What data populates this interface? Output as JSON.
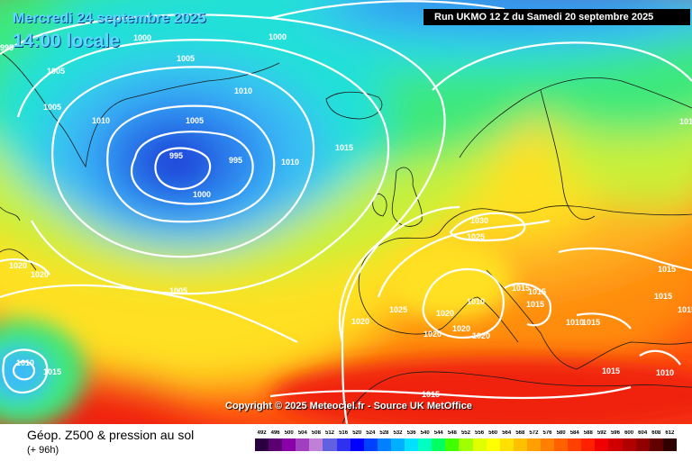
{
  "header": {
    "date_text": "Mercredi 24 septembre 2025",
    "time_text": "14:00 locale",
    "run_text": "Run UKMO 12 Z du Samedi 20 septembre 2025"
  },
  "copyright": "Copyright © 2025 Meteociel.fr - Source UK MetOffice",
  "legend": {
    "title": "Géop. Z500 & pression au sol",
    "subtitle": "(+ 96h)",
    "scale": [
      {
        "value": "492",
        "color": "#2a0040"
      },
      {
        "value": "496",
        "color": "#5a0070"
      },
      {
        "value": "500",
        "color": "#8a00a8"
      },
      {
        "value": "504",
        "color": "#a040c0"
      },
      {
        "value": "508",
        "color": "#c080d8"
      },
      {
        "value": "512",
        "color": "#6060e0"
      },
      {
        "value": "516",
        "color": "#3030f0"
      },
      {
        "value": "520",
        "color": "#0000ff"
      },
      {
        "value": "524",
        "color": "#0040ff"
      },
      {
        "value": "528",
        "color": "#0080ff"
      },
      {
        "value": "532",
        "color": "#00b0ff"
      },
      {
        "value": "536",
        "color": "#00e0ff"
      },
      {
        "value": "540",
        "color": "#00ffc0"
      },
      {
        "value": "544",
        "color": "#00ff60"
      },
      {
        "value": "548",
        "color": "#40ff00"
      },
      {
        "value": "552",
        "color": "#a0ff00"
      },
      {
        "value": "556",
        "color": "#e0ff00"
      },
      {
        "value": "560",
        "color": "#ffff00"
      },
      {
        "value": "564",
        "color": "#ffe000"
      },
      {
        "value": "568",
        "color": "#ffc000"
      },
      {
        "value": "572",
        "color": "#ffa000"
      },
      {
        "value": "576",
        "color": "#ff8000"
      },
      {
        "value": "580",
        "color": "#ff6000"
      },
      {
        "value": "584",
        "color": "#ff4000"
      },
      {
        "value": "588",
        "color": "#ff2000"
      },
      {
        "value": "592",
        "color": "#f00000"
      },
      {
        "value": "596",
        "color": "#d00000"
      },
      {
        "value": "600",
        "color": "#b00000"
      },
      {
        "value": "604",
        "color": "#900000"
      },
      {
        "value": "608",
        "color": "#600000"
      },
      {
        "value": "612",
        "color": "#300000"
      }
    ]
  },
  "map": {
    "colors": {
      "deep_blue": "#1a3cd8",
      "blue": "#2f86f0",
      "light_blue": "#3bbcf5",
      "cyan": "#22e0d8",
      "green": "#3ce87a",
      "yellow_green": "#c8f038",
      "yellow": "#ffe020",
      "orange_light": "#ffb020",
      "orange": "#ff8c10",
      "red_orange": "#ff5010",
      "red": "#f02010",
      "isobar": "#ffffff",
      "coast": "#1a1a1a"
    },
    "isobar_labels": [
      {
        "text": "1000",
        "id": "l1"
      },
      {
        "text": "995",
        "id": "l2"
      },
      {
        "text": "1000",
        "id": "l3"
      },
      {
        "text": "1005",
        "id": "l4"
      },
      {
        "text": "1005",
        "id": "l5"
      },
      {
        "text": "1005",
        "id": "l6"
      },
      {
        "text": "1010",
        "id": "l7"
      },
      {
        "text": "1010",
        "id": "l8"
      },
      {
        "text": "1005",
        "id": "l9"
      },
      {
        "text": "995",
        "id": "l10"
      },
      {
        "text": "995",
        "id": "l11"
      },
      {
        "text": "1000",
        "id": "l12"
      },
      {
        "text": "1015",
        "id": "l13"
      },
      {
        "text": "1010",
        "id": "l14"
      },
      {
        "text": "1020",
        "id": "l15"
      },
      {
        "text": "1020",
        "id": "l16"
      },
      {
        "text": "1005",
        "id": "l17"
      },
      {
        "text": "1030",
        "id": "l18"
      },
      {
        "text": "1025",
        "id": "l19"
      },
      {
        "text": "1025",
        "id": "l20"
      },
      {
        "text": "1020",
        "id": "l21"
      },
      {
        "text": "1020",
        "id": "l22"
      },
      {
        "text": "1020",
        "id": "l23"
      },
      {
        "text": "1020",
        "id": "l24"
      },
      {
        "text": "1020",
        "id": "l25"
      },
      {
        "text": "1010",
        "id": "l26"
      },
      {
        "text": "1015",
        "id": "l27"
      },
      {
        "text": "1015",
        "id": "l28"
      },
      {
        "text": "1015",
        "id": "l29"
      },
      {
        "text": "1010",
        "id": "l30"
      },
      {
        "text": "1015",
        "id": "l31"
      },
      {
        "text": "1015",
        "id": "l32"
      },
      {
        "text": "1015",
        "id": "l33"
      },
      {
        "text": "1015",
        "id": "l34"
      },
      {
        "text": "1010",
        "id": "l35"
      },
      {
        "text": "1010",
        "id": "l36"
      },
      {
        "text": "1015",
        "id": "l37"
      },
      {
        "text": "1015",
        "id": "l38"
      },
      {
        "text": "1010",
        "id": "l39"
      },
      {
        "text": "1015",
        "id": "l40"
      }
    ]
  }
}
